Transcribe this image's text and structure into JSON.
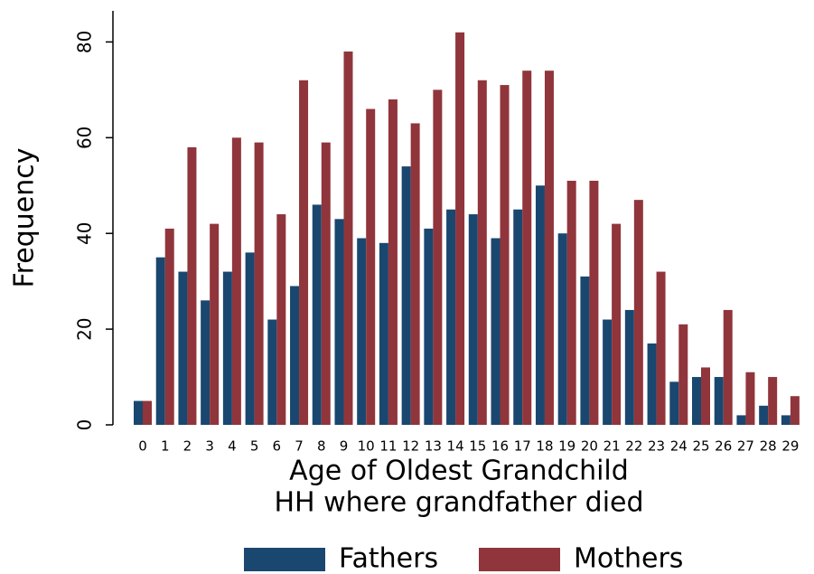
{
  "chart_data": {
    "type": "bar",
    "x_label": "Age of Oldest Grandchild",
    "subtitle": "HH where grandfather died",
    "y_label": "Frequency",
    "categories": [
      "0",
      "1",
      "2",
      "3",
      "4",
      "5",
      "6",
      "7",
      "8",
      "9",
      "10",
      "11",
      "12",
      "13",
      "14",
      "15",
      "16",
      "17",
      "18",
      "19",
      "20",
      "21",
      "22",
      "23",
      "24",
      "25",
      "26",
      "27",
      "28",
      "29"
    ],
    "series": [
      {
        "name": "Fathers",
        "color": "#1a476f",
        "values": [
          5,
          35,
          32,
          26,
          32,
          36,
          22,
          29,
          46,
          43,
          39,
          38,
          54,
          41,
          45,
          44,
          39,
          45,
          50,
          40,
          31,
          22,
          24,
          17,
          9,
          10,
          10,
          2,
          4,
          2
        ]
      },
      {
        "name": "Mothers",
        "color": "#90353b",
        "values": [
          5,
          41,
          58,
          42,
          60,
          59,
          44,
          72,
          59,
          78,
          66,
          68,
          63,
          70,
          82,
          72,
          71,
          74,
          74,
          51,
          51,
          42,
          47,
          32,
          21,
          12,
          24,
          11,
          10,
          6
        ]
      }
    ],
    "ylim": [
      0,
      86.5
    ],
    "yticks": [
      0,
      20,
      40,
      60,
      80
    ],
    "legend": "bottom"
  }
}
